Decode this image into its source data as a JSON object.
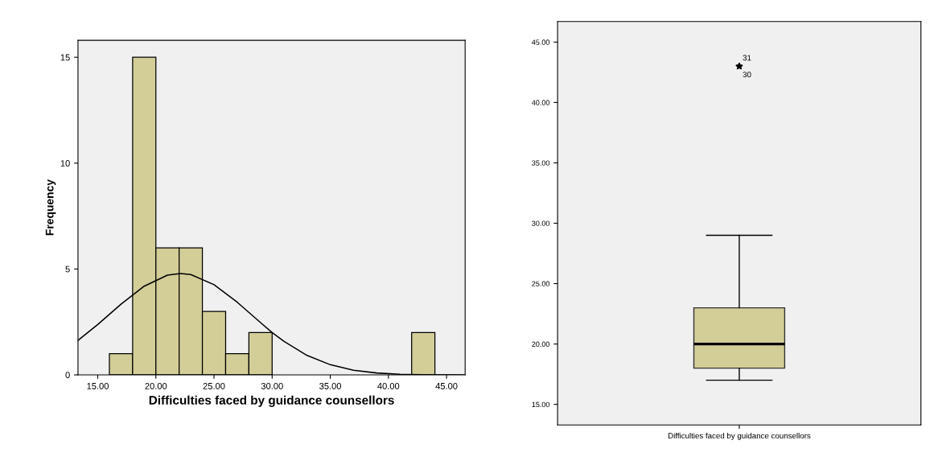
{
  "chart_data": [
    {
      "type": "histogram",
      "xlabel": "Difficulties faced by guidance counsellors",
      "ylabel": "Frequency",
      "bins": [
        16,
        18,
        20,
        22,
        24,
        26,
        28,
        30,
        32,
        34,
        36,
        38,
        40,
        42,
        44
      ],
      "values": [
        1,
        15,
        6,
        6,
        3,
        1,
        2,
        0,
        0,
        0,
        0,
        0,
        0,
        2
      ],
      "color": "#d3ce98",
      "series": [
        {
          "type": "line",
          "color": "#000000",
          "x": [
            13.3,
            15,
            17,
            19,
            21,
            22.1,
            23,
            25,
            27,
            29,
            30,
            31,
            33,
            35,
            37,
            39,
            41,
            43,
            46.5
          ],
          "values": [
            1.63,
            2.38,
            3.34,
            4.19,
            4.71,
            4.79,
            4.74,
            4.26,
            3.43,
            2.47,
            2.0,
            1.59,
            0.92,
            0.48,
            0.22,
            0.09,
            0.03,
            0.01,
            0
          ]
        }
      ],
      "xlim": [
        13.3,
        46.6
      ],
      "ylim": [
        0,
        15.8
      ],
      "xticks": [
        {
          "value": 15,
          "label": "15.00"
        },
        {
          "value": 20,
          "label": "20.00"
        },
        {
          "value": 25,
          "label": "25.00"
        },
        {
          "value": 30,
          "label": "30.00"
        },
        {
          "value": 35,
          "label": "35.00"
        },
        {
          "value": 40,
          "label": "40.00"
        },
        {
          "value": 45,
          "label": "45.00"
        }
      ],
      "yticks": [
        0,
        5,
        10,
        15
      ],
      "grid": false
    },
    {
      "type": "box",
      "categories": [
        "Difficulties faced by guidance counsellors"
      ],
      "color": "#d3ce98",
      "boxes": [
        {
          "low": 17,
          "q1": 18,
          "median": 20,
          "q3": 23,
          "high": 29,
          "outliers": [
            43,
            43
          ]
        }
      ],
      "annotations": [
        "31",
        "30"
      ],
      "ylim": [
        13.3,
        46.7
      ],
      "yticks": [
        {
          "value": 15,
          "label": "15.00"
        },
        {
          "value": 20,
          "label": "20.00"
        },
        {
          "value": 25,
          "label": "25.00"
        },
        {
          "value": 30,
          "label": "30.00"
        },
        {
          "value": 35,
          "label": "35.00"
        },
        {
          "value": 40,
          "label": "40.00"
        },
        {
          "value": 45,
          "label": "45.00"
        }
      ],
      "grid": false
    }
  ]
}
